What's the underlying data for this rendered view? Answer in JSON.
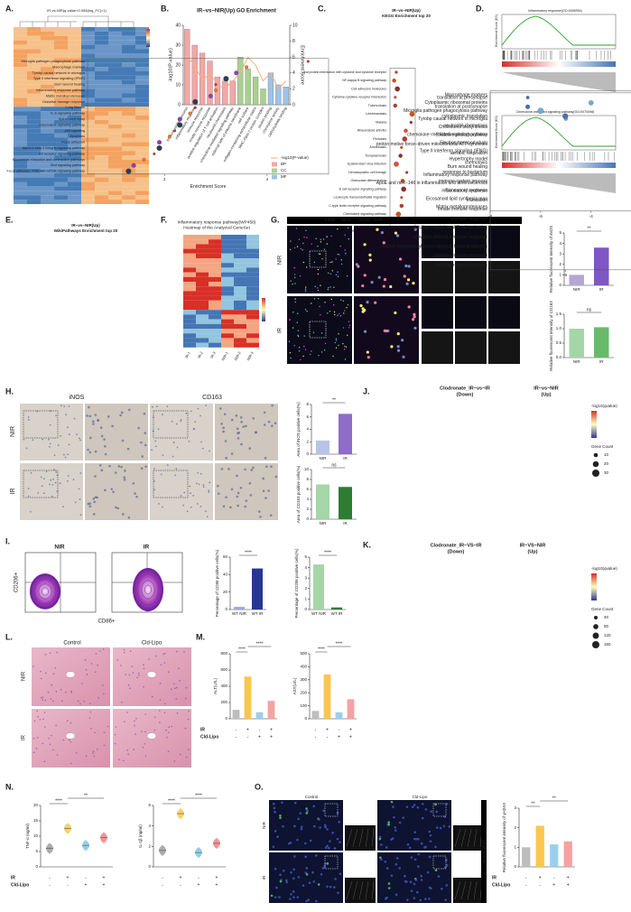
{
  "A": {
    "label": "A.",
    "title": "IR-vs-NIR(q-value<0.05&|log_FC|>1)"
  },
  "B": {
    "label": "B.",
    "title": "IR−vs−NIR(Up) GO Enrichment",
    "y_label": "-log10(P-value)",
    "y2_label": "Enrichment Score",
    "categories": [
      "immune system process",
      "inflammatory response",
      "immune response",
      "innate immune response",
      "positive regulation of T cell activation",
      "neutrophil chemotaxis",
      "chemokine-mediated signaling pathway",
      "external side of plasma membrane",
      "cell surface",
      "collagen-containing extracellular matrix",
      "MHC class II protein complex",
      "protein binding",
      "chemokine activity",
      "carbohydrate binding"
    ],
    "values": [
      38,
      30,
      26,
      22,
      14,
      12,
      12,
      24,
      18,
      14,
      8,
      16,
      10,
      9
    ],
    "colors": [
      "#f4a6a6",
      "#f4a6a6",
      "#f4a6a6",
      "#f4a6a6",
      "#f4a6a6",
      "#f4a6a6",
      "#f4a6a6",
      "#a9d18e",
      "#a9d18e",
      "#a9d18e",
      "#a9d18e",
      "#9dc3e6",
      "#9dc3e6",
      "#9dc3e6"
    ],
    "line_values": [
      6,
      5,
      3,
      4,
      2.5,
      2,
      3,
      4,
      6,
      5,
      3,
      4,
      2,
      3
    ],
    "ylim": [
      0,
      40
    ],
    "yticks": [
      0,
      10,
      20,
      30,
      40
    ],
    "y2lim": [
      0,
      10
    ],
    "y2ticks": [
      0,
      2,
      4,
      6,
      8,
      10
    ],
    "legend": [
      {
        "name": "-log10(P-value)",
        "color": "#f4b183"
      },
      {
        "name": "BP",
        "color": "#f4a6a6"
      },
      {
        "name": "CC",
        "color": "#a9d18e"
      },
      {
        "name": "MF",
        "color": "#9dc3e6"
      }
    ]
  },
  "C": {
    "label": "C.",
    "title": "IR−vs−NIR(Up)",
    "subtitle": "KEGG Enrichment top 20",
    "x_label": "Enrichment Score",
    "terms": [
      "Viral protein interaction with cytokine and cytokine receptor",
      "NF-kappa B signaling pathway",
      "Cell adhesion molecules",
      "Cytokine-cytokine receptor interaction",
      "Tuberculosis",
      "Leishmaniasis",
      "Malaria",
      "Rheumatoid arthritis",
      "Pertussis",
      "Amoebiasis",
      "Toxoplasmosis",
      "Epstein-Barr virus infection",
      "Hematopoietic cell lineage",
      "Osteoclast differentiation",
      "B cell receptor signaling pathway",
      "Leukocyte transendothelial migration",
      "C-type lectin receptor signaling pathway",
      "Chemokine signaling pathway",
      "Platelet activation",
      "NOD-like receptor signaling pathway"
    ],
    "values": [
      2.4,
      2.2,
      2.5,
      2.3,
      2.3,
      3.9,
      3.8,
      3.3,
      3.2,
      2.9,
      2.8,
      2.4,
      3.4,
      3.0,
      3.1,
      2.9,
      2.9,
      2.6,
      2.7,
      2.3
    ],
    "xlim": [
      1.8,
      4.2
    ],
    "xticks": [
      {
        "value": 2,
        "label": "2.0"
      },
      2.5,
      {
        "value": 3,
        "label": "3.0"
      },
      3.5,
      {
        "value": 4,
        "label": "4.0"
      }
    ]
  },
  "D": {
    "label": "D.",
    "titles": [
      "Inflammatory response(GO:0006954)",
      "Chemokine-mediated signaling pathway(GO:0070098)"
    ],
    "y_label": "Enrichment Score (ES)"
  },
  "E": {
    "label": "E.",
    "title": "IR−vs−NIR(Up)",
    "subtitle": "WikiPathways Enrichment top 20",
    "x_label": "Enrichment Score",
    "terms": [
      "Microglia pathogen phagocytosis pathway",
      "Macrophage markers",
      "Tyrobp causal network in microglia",
      "Type II interferon signaling (IFNG)",
      "Burn wound healing",
      "Inflammatory response pathway",
      "Matrix metalloproteinases",
      "Oxidative damage response",
      "Lung fibrosis",
      "IL-6 signaling pathway",
      "Spinal cord injury",
      "Chemokine signaling pathway",
      "p53 signaling",
      "Apoptosis",
      "Focal adhesion",
      "Alpha 6 beta 4 integrin signaling pathway",
      "Kit receptor signaling pathway",
      "Myometrial relaxation and contraction pathways",
      "Wnt signaling pathway",
      "Focal adhesion: PI3K-Akt-mTOR signaling pathway"
    ],
    "values": [
      4.8,
      3.6,
      3.4,
      3.2,
      3.0,
      3.0,
      2.9,
      2.6,
      2.6,
      2.5,
      2.3,
      2.3,
      2.2,
      2.1,
      1.9,
      1.9,
      1.8,
      1.6,
      1.4,
      1.3
    ],
    "xlim": [
      0.5,
      5.2
    ],
    "xticks": [
      2,
      4
    ]
  },
  "F": {
    "label": "F.",
    "title": "Inflammatory response pathway(WP458)",
    "subtitle": "Heatmap of the Analyzed GeneSet",
    "columns": [
      "IR-1",
      "IR-2",
      "IR-3",
      "NIR-1",
      "NIR-2",
      "NIR-3"
    ]
  },
  "G": {
    "label": "G.",
    "header": [
      "F4/80",
      "iNOS",
      "CD163",
      "DAPI"
    ],
    "rows": [
      "NIR",
      "IR"
    ],
    "charts": [
      {
        "categories": [
          "NIR",
          "IR"
        ],
        "values": [
          1.0,
          3.6
        ],
        "colors": [
          "#b4a7d6",
          "#7e57c2"
        ],
        "ylim": [
          0,
          5
        ],
        "yticks": [
          0,
          1,
          2,
          3,
          4,
          5
        ],
        "y_label": "Relative fluorescent intensity of iNOS",
        "significance": [
          "**"
        ]
      },
      {
        "categories": [
          "NIR",
          "IR"
        ],
        "values": [
          1.0,
          1.05
        ],
        "colors": [
          "#a5d6a7",
          "#66bb6a"
        ],
        "ylim": [
          0,
          1.5
        ],
        "yticks": [
          {
            "value": 0,
            "label": "0.0"
          },
          0.5,
          {
            "value": 1,
            "label": "1.0"
          },
          1.5
        ],
        "y_label": "Relative fluorescent intensity of CD163",
        "significance": [
          "ns"
        ]
      }
    ]
  },
  "H": {
    "label": "H.",
    "header": [
      "iNOS",
      "CD163"
    ],
    "rows": [
      "NIR",
      "IR"
    ],
    "charts": [
      {
        "categories": [
          "NIR",
          "IR"
        ],
        "values": [
          2.2,
          6.5
        ],
        "colors": [
          "#b7c4e6",
          "#8e6cc8"
        ],
        "ylim": [
          0,
          8
        ],
        "yticks": [
          0,
          2,
          4,
          6,
          8
        ],
        "y_label": "Area of iNOS positive cells(%)",
        "significance": [
          "**"
        ]
      },
      {
        "categories": [
          "NIR",
          "IR"
        ],
        "values": [
          7.0,
          6.5
        ],
        "colors": [
          "#a5d6a7",
          "#2e7d32"
        ],
        "ylim": [
          0,
          10
        ],
        "yticks": [
          0,
          2,
          4,
          6,
          8,
          10
        ],
        "y_label": "Area of CD163 positive cells(%)",
        "significance": [
          "ns"
        ]
      }
    ]
  },
  "I": {
    "label": "I.",
    "header": [
      "NIR",
      "IR"
    ],
    "y_label": "CD206+",
    "x_label": "CD86+",
    "charts": [
      {
        "categories": [
          "WT NIR",
          "WT IR"
        ],
        "values": [
          3,
          47
        ],
        "colors": [
          "#9fa8da",
          "#283593"
        ],
        "ylim": [
          0,
          60
        ],
        "yticks": [
          0,
          20,
          40,
          60
        ],
        "y_label": "Percentage of CD86 positive cells(%)",
        "significance": [
          "****"
        ]
      },
      {
        "categories": [
          "WT NIR",
          "WT IR"
        ],
        "values": [
          4.3,
          0.2
        ],
        "colors": [
          "#a5d6a7",
          "#2e7d32"
        ],
        "ylim": [
          0,
          5
        ],
        "yticks": [
          0,
          1,
          2,
          3,
          4,
          5
        ],
        "y_label": "Percentage of CD206 positive cells(%)",
        "significance": [
          "****"
        ]
      }
    ]
  },
  "J": {
    "label": "J.",
    "left_title": [
      "Clodronate_IR−vs−IR",
      "(Down)"
    ],
    "right_title": [
      "IR−vs−NIR",
      "(Up)"
    ],
    "x_label": "Enrichment Score",
    "terms": [
      "Macrophage markers",
      "Cytoplasmic ribosomal proteins",
      "Microglia pathogen phagocytosis pathway",
      "Tyrobp causal network in microglia",
      "Cholesterol biosynthesis",
      "Oxidative phosphorylation",
      "Electron transport chain",
      "Type II interferon signaling (IFNG)",
      "Hypertrophy model",
      "Burn wound healing",
      "Inflammatory response pathway",
      "ApoE and miR−146 in inflammation and atherosclerosis",
      "Eicosanoid synthesis",
      "Eicosanoid lipid synthesis map",
      "Matrix metalloproteinases"
    ],
    "series": [
      {
        "color": "#6baed6",
        "values": [
          -1,
          -4,
          -6,
          -5,
          -2,
          -2,
          -2,
          null,
          null,
          null,
          -1,
          null,
          -1,
          -1,
          -1
        ]
      },
      {
        "color": "#f46d43",
        "values": [
          6,
          5,
          4,
          5,
          null,
          null,
          null,
          4,
          4,
          4,
          4,
          4,
          3,
          3,
          3
        ]
      }
    ],
    "xlim": [
      -8,
      8
    ],
    "xticks": [
      -8,
      -6,
      -4,
      -2,
      0,
      2,
      4,
      6,
      8
    ],
    "color_legend": "-log10(qvalue)",
    "size_legend": {
      "title": "Gene Count",
      "values": [
        10,
        20,
        30
      ]
    }
  },
  "K": {
    "label": "K.",
    "left_title": [
      "Clodronate_IR−VS−IR",
      "(Down)"
    ],
    "right_title": [
      "IR−VS−NIR",
      "(Up)"
    ],
    "x_label": "Enrichment Score",
    "terms": [
      "translation at presynapse",
      "translation at postsynapse",
      "cytoplasmic translation",
      "neutrophil chemotaxis",
      "chemokine−mediated signaling pathway",
      "proton motive force−driven mitochondrial ATP synthesis",
      "aerobic respiration",
      "chemotaxis",
      "response to bacterium",
      "immune system process",
      "inflammatory response",
      "translation",
      "innate immune response",
      "immune response",
      "positive regulation of T cell activation",
      "activation of innate immune response",
      "positive regulation of tumor necrosis factor production",
      "adaptive immune response",
      "defense response to virus"
    ],
    "series": [
      {
        "color": "#4a6fb5",
        "values": [
          -7,
          -7,
          -6,
          -4,
          -3,
          -3,
          -2,
          -2,
          -2,
          -2,
          -2,
          -2,
          -2,
          -2,
          null,
          -1,
          -1,
          -1,
          -1
        ]
      },
      {
        "color": "#e84a3c",
        "values": [
          null,
          null,
          null,
          3,
          3,
          null,
          null,
          3,
          3,
          3,
          3,
          null,
          3,
          3,
          6,
          3,
          3,
          3,
          3
        ]
      }
    ],
    "xlim": [
      -8,
      7
    ],
    "xticks": [
      -8,
      -6,
      -4,
      -2,
      0,
      2,
      4,
      6
    ],
    "color_legend": "-log10(qvalue)",
    "size_legend": {
      "title": "Gene Count",
      "values": [
        40,
        80,
        120,
        160
      ]
    }
  },
  "L": {
    "label": "L.",
    "header": [
      "Control",
      "Cld-Lipo"
    ],
    "rows": [
      "NIR",
      "IR"
    ]
  },
  "M": {
    "label": "M.",
    "conditions": [
      {
        "name": "IR",
        "marks": [
          "-",
          "+",
          "-",
          "+"
        ]
      },
      {
        "name": "Cld-Lipo",
        "marks": [
          "-",
          "-",
          "+",
          "+"
        ]
      }
    ],
    "charts": [
      {
        "type": "bar",
        "values": [
          110,
          520,
          80,
          220
        ],
        "colors": [
          "#bdbdbd",
          "#f9c74f",
          "#9ad0ec",
          "#f4a3a3"
        ],
        "ylim": [
          0,
          800
        ],
        "yticks": [
          0,
          200,
          400,
          600,
          800
        ],
        "y_label": "ALT(U/L)",
        "significance": [
          "****",
          "****"
        ]
      },
      {
        "type": "bar",
        "values": [
          60,
          340,
          50,
          150
        ],
        "colors": [
          "#bdbdbd",
          "#f9c74f",
          "#9ad0ec",
          "#f4a3a3"
        ],
        "ylim": [
          0,
          500
        ],
        "yticks": [
          0,
          100,
          200,
          300,
          400,
          500
        ],
        "y_label": "AST(U/L)",
        "significance": [
          "****",
          "****"
        ]
      }
    ]
  },
  "N": {
    "label": "N.",
    "conditions": [
      {
        "name": "IR",
        "marks": [
          "-",
          "+",
          "-",
          "+"
        ]
      },
      {
        "name": "Cld-Lipo",
        "marks": [
          "-",
          "-",
          "+",
          "+"
        ]
      }
    ],
    "charts": [
      {
        "type": "violin",
        "values": [
          6,
          12.5,
          7,
          9.5
        ],
        "colors": [
          "#9e9e9e",
          "#f9c74f",
          "#7ec8e3",
          "#f08080"
        ],
        "ylim": [
          0,
          20
        ],
        "yticks": [
          0,
          5,
          10,
          15,
          20
        ],
        "y_label": "TNF-α (ng/ml)",
        "significance": [
          "****",
          "**"
        ]
      },
      {
        "type": "violin",
        "values": [
          1.6,
          5.2,
          1.4,
          2.3
        ],
        "colors": [
          "#9e9e9e",
          "#f9c74f",
          "#7ec8e3",
          "#f08080"
        ],
        "ylim": [
          0,
          6
        ],
        "yticks": [
          0,
          2,
          4,
          6
        ],
        "y_label": "IL-1β (ng/ml)",
        "significance": [
          "****",
          "****"
        ]
      }
    ]
  },
  "O": {
    "label": "O.",
    "header": [
      "Control",
      "Cld-Lipo"
    ],
    "rows": [
      "NIR",
      "IR"
    ],
    "stain": "γH2AX DAPI",
    "conditions": [
      {
        "name": "IR",
        "marks": [
          "-",
          "+",
          "-",
          "+"
        ]
      },
      {
        "name": "Cld-Lipo",
        "marks": [
          "-",
          "-",
          "+",
          "+"
        ]
      }
    ],
    "charts": [
      {
        "type": "bar",
        "values": [
          1.0,
          2.1,
          1.15,
          1.3
        ],
        "colors": [
          "#bdbdbd",
          "#f9c74f",
          "#9ad0ec",
          "#f4a3a3"
        ],
        "ylim": [
          0,
          3
        ],
        "yticks": [
          0,
          1,
          2,
          3
        ],
        "y_label": "Relative fluorescent intensity of γH2AX",
        "significance": [
          "**",
          "**"
        ]
      }
    ]
  }
}
